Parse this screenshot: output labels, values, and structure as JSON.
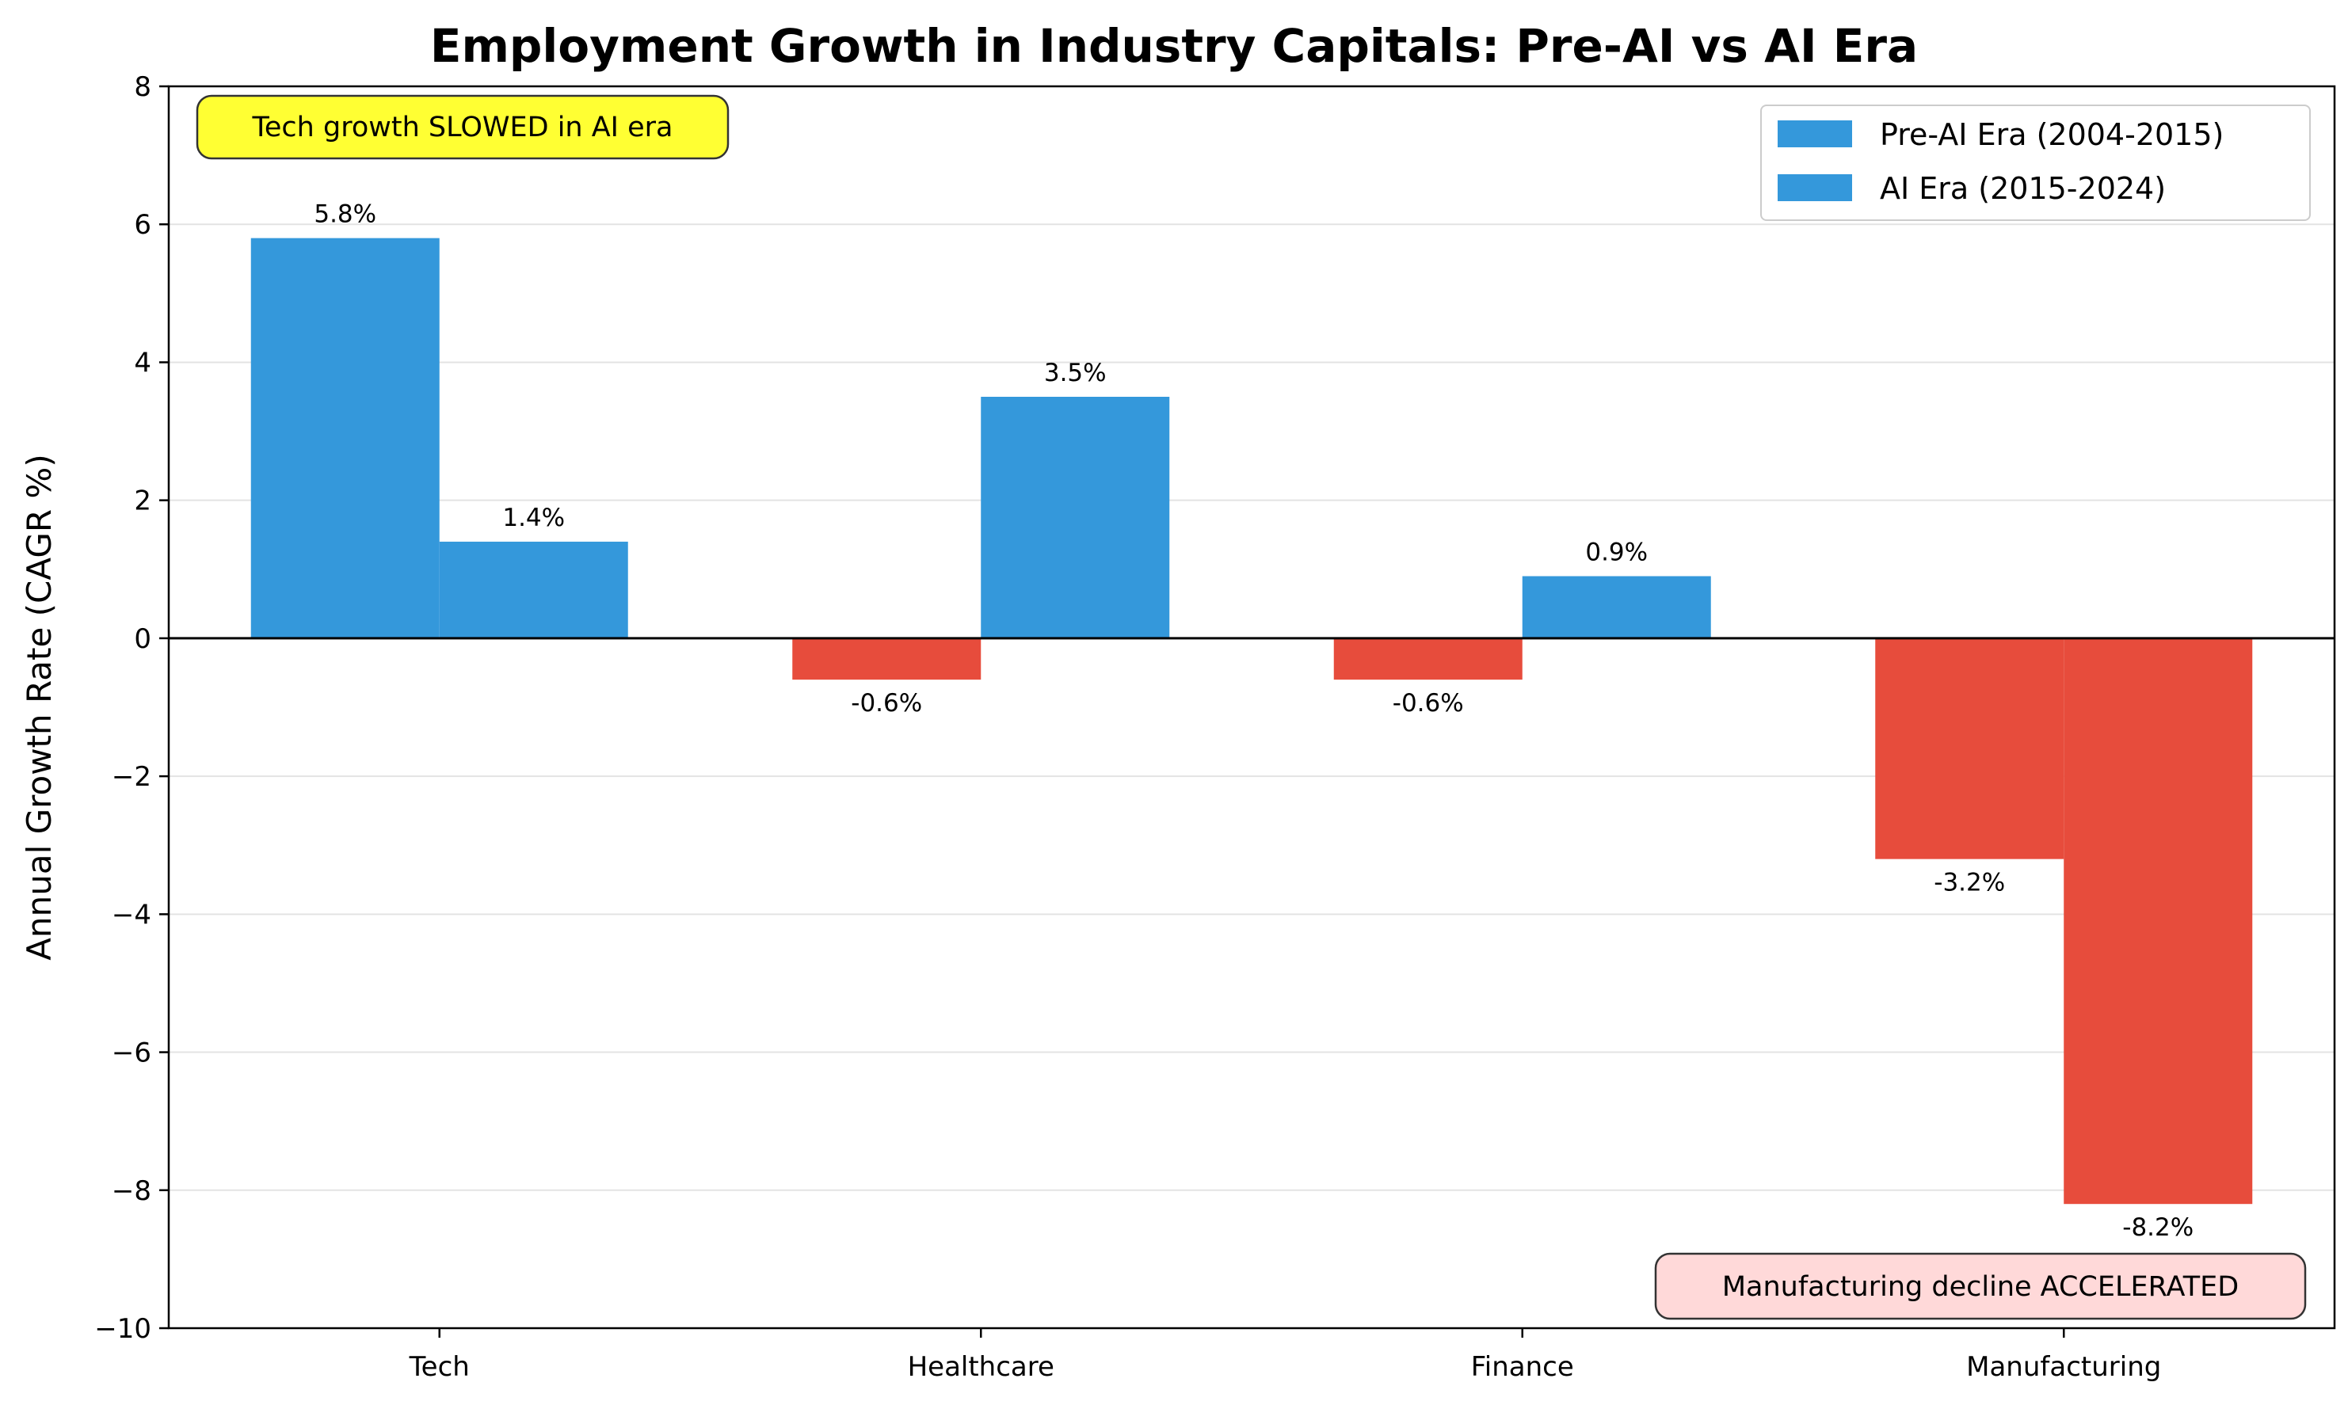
{
  "chart_data": {
    "type": "bar",
    "title": "Employment Growth in Industry Capitals: Pre-AI vs AI Era",
    "xlabel": "",
    "ylabel": "Annual Growth Rate (CAGR %)",
    "categories": [
      "Tech",
      "Healthcare",
      "Finance",
      "Manufacturing"
    ],
    "series": [
      {
        "name": "Pre-AI Era (2004-2015)",
        "values": [
          5.8,
          -0.6,
          -0.6,
          -3.2
        ],
        "labels": [
          "5.8%",
          "-0.6%",
          "-0.6%",
          "-3.2%"
        ]
      },
      {
        "name": "AI Era (2015-2024)",
        "values": [
          1.4,
          3.5,
          0.9,
          -8.2
        ],
        "labels": [
          "1.4%",
          "3.5%",
          "0.9%",
          "-8.2%"
        ]
      }
    ],
    "ylim": [
      -10,
      8
    ],
    "yticks": [
      8,
      6,
      4,
      2,
      0,
      -2,
      -4,
      -6,
      -8,
      -10
    ],
    "ytick_labels": [
      "8",
      "6",
      "4",
      "2",
      "0",
      "−2",
      "−4",
      "−6",
      "−8",
      "−10"
    ],
    "grid": "horizontal",
    "legend_position": "top-right",
    "colors": {
      "positive": "#3498db",
      "negative": "#e74c3c"
    },
    "annotations": [
      {
        "text": "Tech growth SLOWED in AI era",
        "position": "top-left",
        "color": "#ffff33"
      },
      {
        "text": "Manufacturing decline ACCELERATED",
        "position": "bottom-right",
        "color": "#ffd9d9"
      }
    ]
  }
}
